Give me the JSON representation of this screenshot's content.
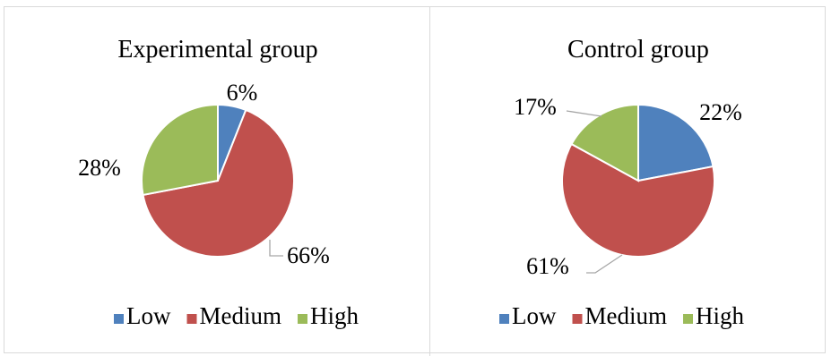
{
  "chart_data": [
    {
      "type": "pie",
      "title": "Experimental group",
      "categories": [
        "Low",
        "Medium",
        "High"
      ],
      "values": [
        6,
        66,
        28
      ],
      "labels": [
        "6%",
        "66%",
        "28%"
      ],
      "colors": [
        "#4f81bd",
        "#c0504d",
        "#9bbb59"
      ],
      "legend": "bottom"
    },
    {
      "type": "pie",
      "title": "Control group",
      "categories": [
        "Low",
        "Medium",
        "High"
      ],
      "values": [
        22,
        61,
        17
      ],
      "labels": [
        "22%",
        "61%",
        "17%"
      ],
      "colors": [
        "#4f81bd",
        "#c0504d",
        "#9bbb59"
      ],
      "legend": "bottom"
    }
  ]
}
